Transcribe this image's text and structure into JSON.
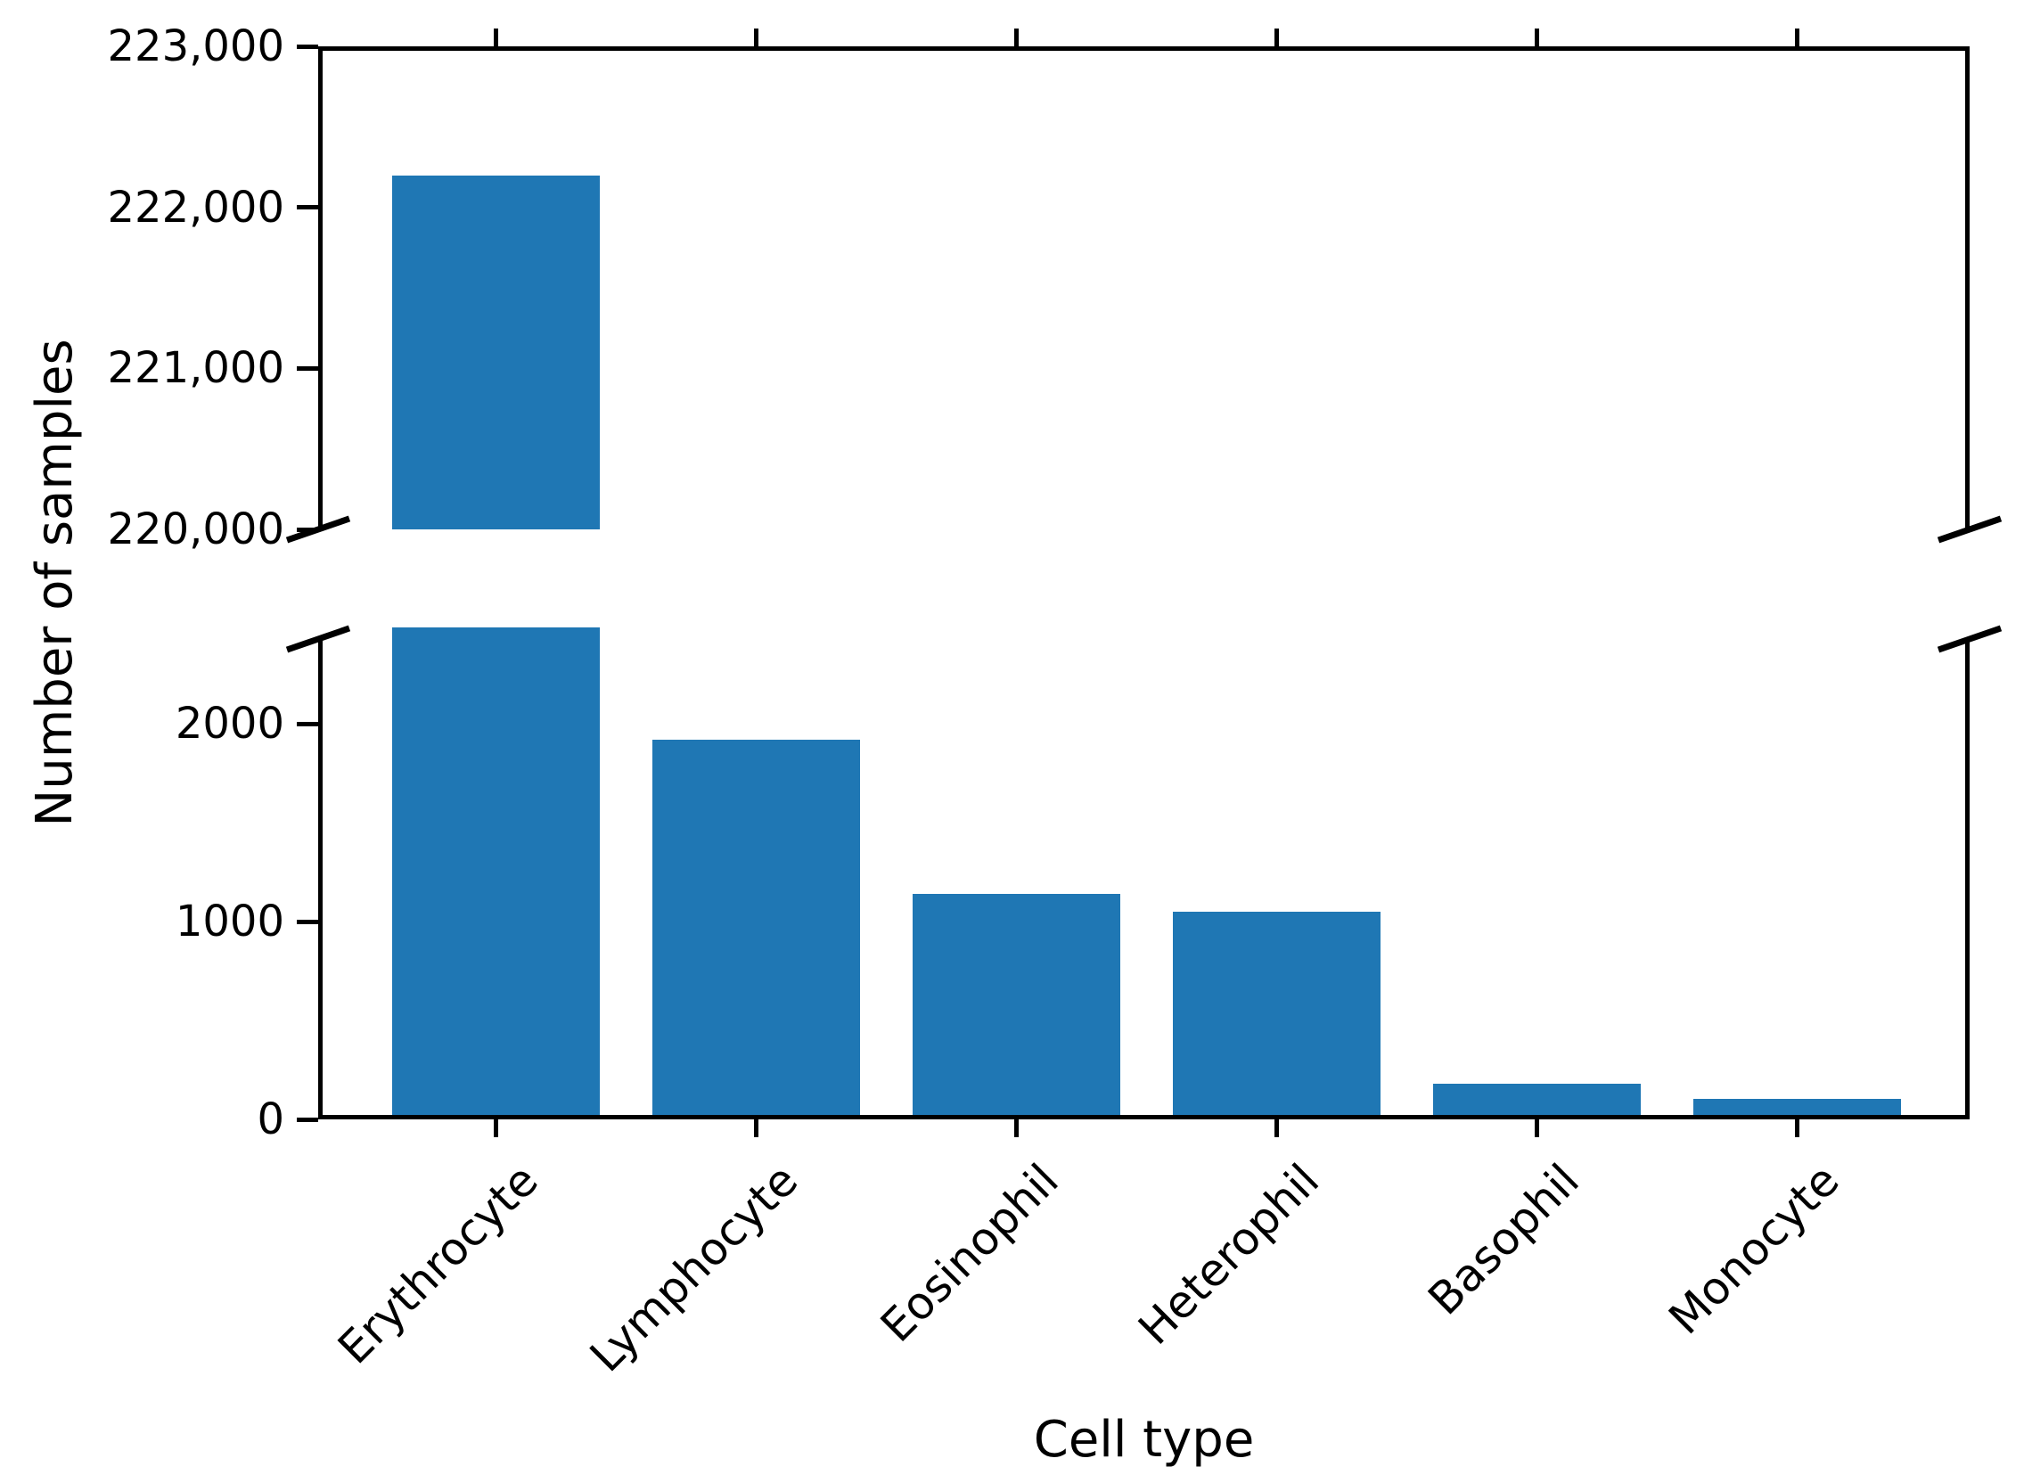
{
  "chart_data": {
    "type": "bar",
    "title": "",
    "xlabel": "Cell type",
    "ylabel": "Number of samples",
    "categories": [
      "Erythrocyte",
      "Lymphocyte",
      "Eosinophil",
      "Heterophil",
      "Basophil",
      "Monocyte"
    ],
    "values": [
      222200,
      1900,
      1120,
      1030,
      160,
      80
    ],
    "bar_color": "#1f77b4",
    "axis_color": "#000000",
    "broken_axis": true,
    "top_axis": {
      "ylim": [
        220000,
        223000
      ],
      "ticks": [
        {
          "label": "223,000",
          "value": 223000
        },
        {
          "label": "222,000",
          "value": 222000
        },
        {
          "label": "221,000",
          "value": 221000
        },
        {
          "label": "220,000",
          "value": 220000
        }
      ]
    },
    "bottom_axis": {
      "ylim": [
        0,
        2430
      ],
      "ticks": [
        {
          "label": "2000",
          "value": 2000
        },
        {
          "label": "1000",
          "value": 1000
        },
        {
          "label": "0",
          "value": 0
        }
      ]
    },
    "legend": null,
    "grid": false
  }
}
